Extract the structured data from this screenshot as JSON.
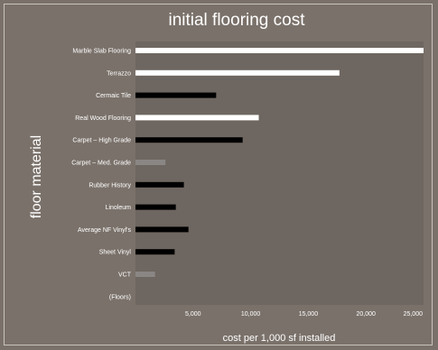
{
  "chart_data": {
    "type": "bar",
    "orientation": "horizontal",
    "title": "initial flooring cost",
    "xlabel": "cost per 1,000 sf installed",
    "ylabel": "floor material",
    "categories": [
      "Marble Slab Flooring",
      "Terrazzo",
      "Cermaic Tile",
      "Real Wood Flooring",
      "Carpet – High Grade",
      "Carpet – Med. Grade",
      "Rubber History",
      "Linoleum",
      "Average NF Vinyl's",
      "Sheet Vinyl",
      "VCT",
      "(Floors)"
    ],
    "values": [
      25000,
      17700,
      7000,
      10700,
      9300,
      2600,
      4200,
      3500,
      4600,
      3400,
      1700,
      0
    ],
    "bar_colors": [
      "#ffffff",
      "#ffffff",
      "#000000",
      "#ffffff",
      "#000000",
      "#8a8684",
      "#000000",
      "#000000",
      "#000000",
      "#000000",
      "#8a8684",
      "#000000"
    ],
    "xlim": [
      0,
      25000
    ],
    "xticks": [
      5000,
      10000,
      15000,
      20000,
      25000
    ],
    "xtick_labels": [
      "5,000",
      "10,000",
      "15,000",
      "20,000",
      "25,000"
    ],
    "grid": false,
    "colors": {
      "background": "#7a716a",
      "plot_area": "#6e6660",
      "frame": "#c9c3bd"
    }
  }
}
